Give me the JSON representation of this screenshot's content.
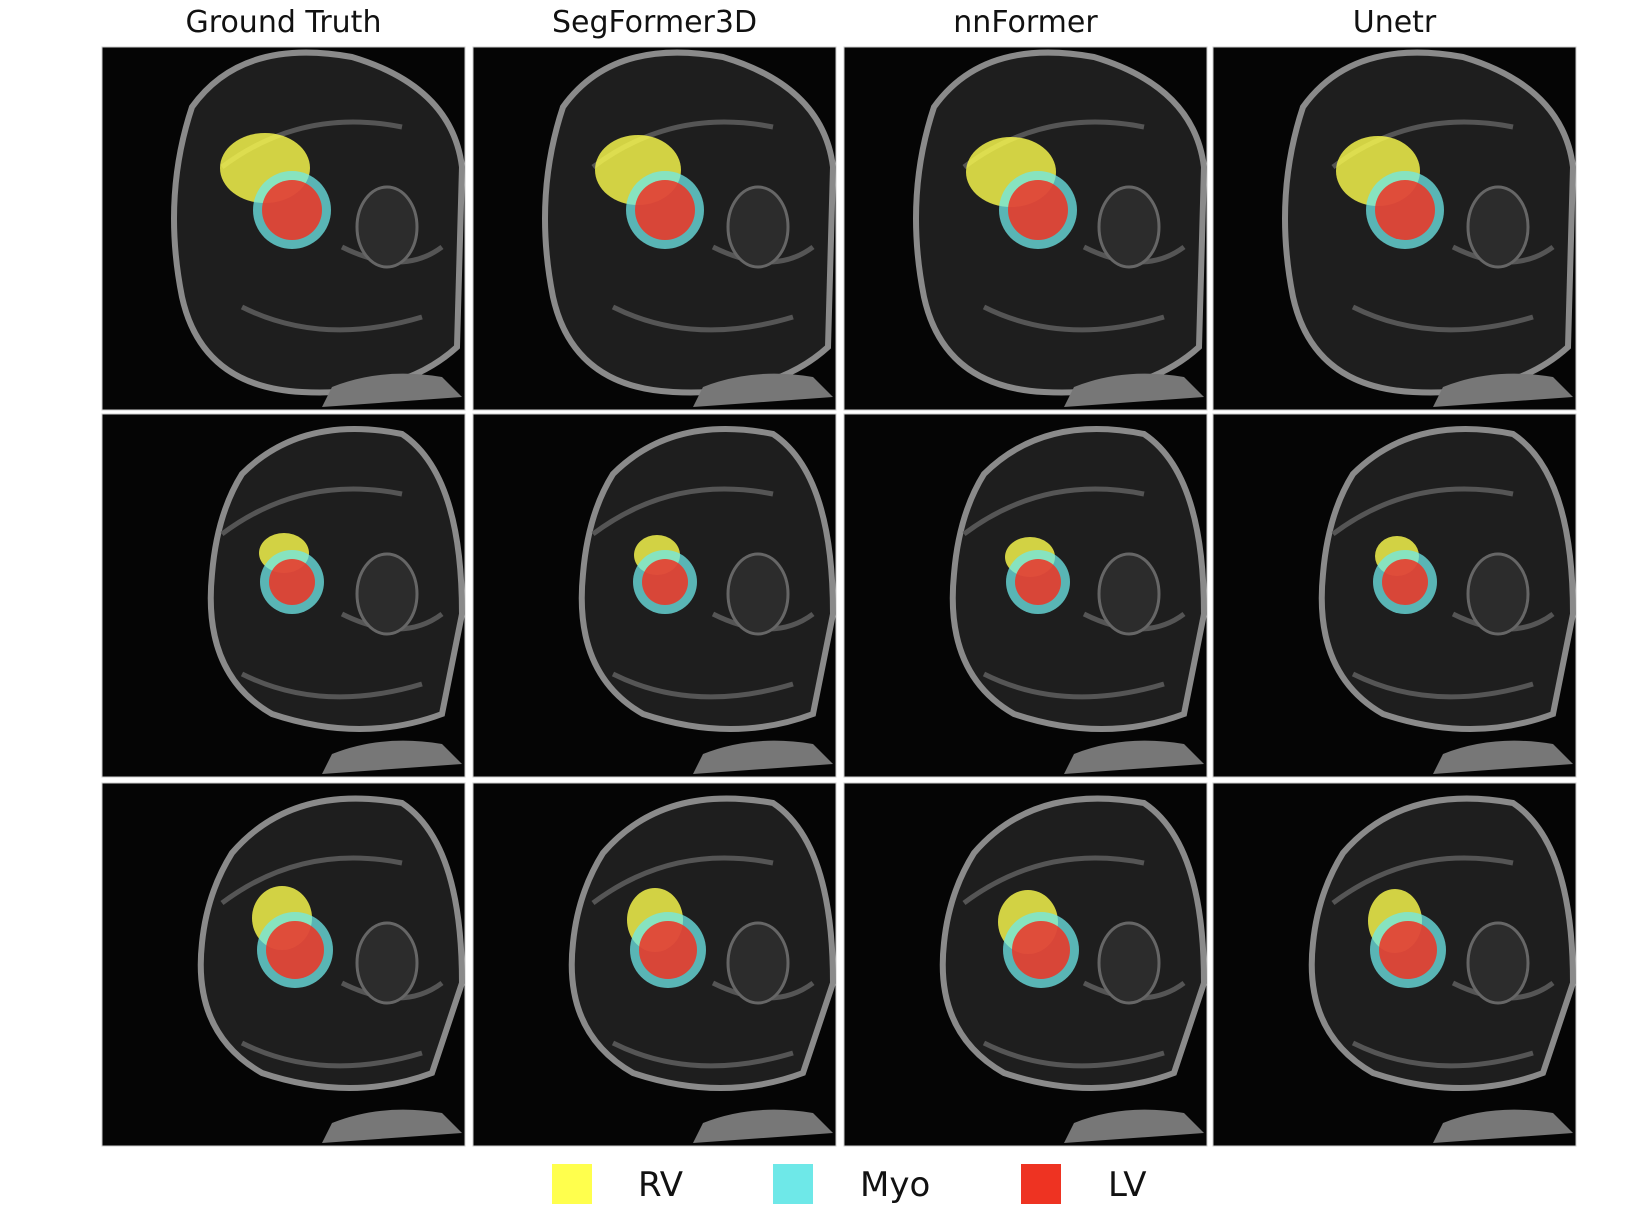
{
  "columns": [
    "Ground Truth",
    "SegFormer3D",
    "nnFormer",
    "Unetr"
  ],
  "legend": [
    {
      "label": "RV",
      "color": "#ffff4d"
    },
    {
      "label": "Myo",
      "color": "#6ee8e8"
    },
    {
      "label": "LV",
      "color": "#ee3322"
    }
  ]
}
